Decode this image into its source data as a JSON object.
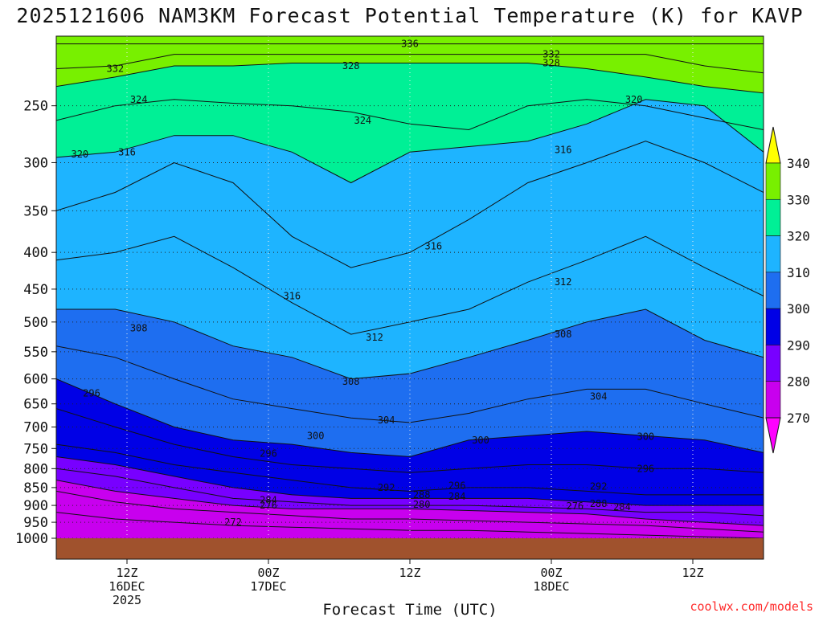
{
  "chart_data": {
    "type": "contour",
    "title": "2025121606 NAM3KM Forecast Potential Temperature (K) for KAVP",
    "xlabel": "Forecast Time (UTC)",
    "ylabel": "",
    "credit": "coolwx.com/models",
    "y_axis": {
      "scale": "pressure (log)",
      "ylim": [
        1000,
        200
      ],
      "ticks": [
        "250",
        "300",
        "350",
        "400",
        "450",
        "500",
        "550",
        "600",
        "650",
        "700",
        "750",
        "800",
        "850",
        "900",
        "950",
        "1000"
      ]
    },
    "x_axis": {
      "xlim_hours": [
        0,
        60
      ],
      "ticks": [
        {
          "hour": 6,
          "line1": "12Z",
          "line2": "16DEC",
          "line3": "2025"
        },
        {
          "hour": 18,
          "line1": "00Z",
          "line2": "17DEC",
          "line3": ""
        },
        {
          "hour": 30,
          "line1": "12Z",
          "line2": "",
          "line3": ""
        },
        {
          "hour": 42,
          "line1": "00Z",
          "line2": "18DEC",
          "line3": ""
        },
        {
          "hour": 54,
          "line1": "12Z",
          "line2": "",
          "line3": ""
        }
      ]
    },
    "grid": true,
    "colorbar": {
      "levels": [
        270,
        280,
        290,
        300,
        310,
        320,
        330,
        340
      ],
      "colors": [
        "#ff00ff",
        "#c800ee",
        "#7800ff",
        "#0000e6",
        "#1e6ef0",
        "#1eb4ff",
        "#00f096",
        "#78f000",
        "#ffff00"
      ],
      "labels": [
        "270",
        "280",
        "290",
        "300",
        "310",
        "320",
        "330",
        "340"
      ]
    },
    "isentropes": [
      {
        "theta": 336,
        "pressure": [
          205,
          205,
          205,
          205,
          205,
          205,
          205,
          205,
          205,
          205,
          205,
          205,
          205
        ]
      },
      {
        "theta": 332,
        "pressure": [
          222,
          220,
          212,
          212,
          212,
          212,
          212,
          212,
          212,
          212,
          212,
          220,
          225
        ]
      },
      {
        "theta": 328,
        "pressure": [
          235,
          228,
          220,
          220,
          218,
          218,
          218,
          218,
          218,
          222,
          228,
          235,
          240
        ]
      },
      {
        "theta": 324,
        "pressure": [
          262,
          250,
          245,
          248,
          250,
          255,
          265,
          270,
          250,
          245,
          250,
          260,
          270
        ]
      },
      {
        "theta": 320,
        "pressure": [
          295,
          290,
          275,
          275,
          290,
          320,
          290,
          285,
          280,
          265,
          245,
          250,
          290
        ]
      },
      {
        "theta": 316,
        "pressure": [
          350,
          330,
          300,
          320,
          380,
          420,
          400,
          360,
          320,
          300,
          280,
          300,
          330
        ]
      },
      {
        "theta": 312,
        "pressure": [
          410,
          400,
          380,
          420,
          470,
          520,
          500,
          480,
          440,
          410,
          380,
          420,
          460
        ]
      },
      {
        "theta": 308,
        "pressure": [
          480,
          480,
          500,
          540,
          560,
          600,
          590,
          560,
          530,
          500,
          480,
          530,
          560
        ]
      },
      {
        "theta": 304,
        "pressure": [
          540,
          560,
          600,
          640,
          660,
          680,
          690,
          670,
          640,
          620,
          620,
          650,
          680
        ]
      },
      {
        "theta": 300,
        "pressure": [
          600,
          650,
          700,
          730,
          740,
          760,
          770,
          730,
          720,
          710,
          720,
          730,
          760
        ]
      },
      {
        "theta": 296,
        "pressure": [
          660,
          700,
          740,
          770,
          790,
          800,
          810,
          800,
          790,
          790,
          800,
          800,
          810
        ]
      },
      {
        "theta": 292,
        "pressure": [
          740,
          760,
          790,
          810,
          830,
          850,
          860,
          850,
          850,
          860,
          870,
          870,
          870
        ]
      },
      {
        "theta": 288,
        "pressure": [
          770,
          790,
          820,
          850,
          870,
          880,
          880,
          880,
          880,
          890,
          900,
          900,
          900
        ]
      },
      {
        "theta": 284,
        "pressure": [
          800,
          820,
          850,
          880,
          890,
          900,
          900,
          900,
          905,
          910,
          920,
          920,
          930
        ]
      },
      {
        "theta": 280,
        "pressure": [
          830,
          860,
          880,
          900,
          910,
          910,
          910,
          915,
          920,
          925,
          940,
          950,
          960
        ]
      },
      {
        "theta": 276,
        "pressure": [
          860,
          890,
          910,
          920,
          930,
          940,
          940,
          945,
          950,
          955,
          960,
          970,
          980
        ]
      },
      {
        "theta": 272,
        "pressure": [
          920,
          940,
          950,
          960,
          965,
          970,
          975,
          975,
          980,
          985,
          990,
          995,
          1000
        ]
      }
    ],
    "isentrope_hours": [
      0,
      5,
      10,
      15,
      20,
      25,
      30,
      35,
      40,
      45,
      50,
      55,
      60
    ],
    "contour_labels": [
      {
        "text": "336",
        "hour": 30,
        "pressure": 205
      },
      {
        "text": "332",
        "hour": 5,
        "pressure": 222
      },
      {
        "text": "332",
        "hour": 42,
        "pressure": 212
      },
      {
        "text": "328",
        "hour": 25,
        "pressure": 220
      },
      {
        "text": "328",
        "hour": 42,
        "pressure": 218
      },
      {
        "text": "324",
        "hour": 7,
        "pressure": 245
      },
      {
        "text": "324",
        "hour": 26,
        "pressure": 262
      },
      {
        "text": "320",
        "hour": 2,
        "pressure": 292
      },
      {
        "text": "320",
        "hour": 49,
        "pressure": 245
      },
      {
        "text": "316",
        "hour": 6,
        "pressure": 290
      },
      {
        "text": "316",
        "hour": 43,
        "pressure": 288
      },
      {
        "text": "316",
        "hour": 32,
        "pressure": 392
      },
      {
        "text": "316",
        "hour": 20,
        "pressure": 460
      },
      {
        "text": "312",
        "hour": 43,
        "pressure": 440
      },
      {
        "text": "312",
        "hour": 27,
        "pressure": 525
      },
      {
        "text": "308",
        "hour": 7,
        "pressure": 510
      },
      {
        "text": "308",
        "hour": 43,
        "pressure": 520
      },
      {
        "text": "308",
        "hour": 25,
        "pressure": 605
      },
      {
        "text": "304",
        "hour": 46,
        "pressure": 635
      },
      {
        "text": "304",
        "hour": 28,
        "pressure": 685
      },
      {
        "text": "300",
        "hour": 22,
        "pressure": 720
      },
      {
        "text": "300",
        "hour": 36,
        "pressure": 730
      },
      {
        "text": "300",
        "hour": 50,
        "pressure": 722
      },
      {
        "text": "296",
        "hour": 3,
        "pressure": 628
      },
      {
        "text": "296",
        "hour": 18,
        "pressure": 762
      },
      {
        "text": "296",
        "hour": 50,
        "pressure": 800
      },
      {
        "text": "296",
        "hour": 34,
        "pressure": 845
      },
      {
        "text": "292",
        "hour": 28,
        "pressure": 850
      },
      {
        "text": "292",
        "hour": 46,
        "pressure": 847
      },
      {
        "text": "288",
        "hour": 31,
        "pressure": 870
      },
      {
        "text": "288",
        "hour": 46,
        "pressure": 895
      },
      {
        "text": "284",
        "hour": 18,
        "pressure": 885
      },
      {
        "text": "284",
        "hour": 34,
        "pressure": 875
      },
      {
        "text": "284",
        "hour": 48,
        "pressure": 905
      },
      {
        "text": "280",
        "hour": 31,
        "pressure": 897
      },
      {
        "text": "276",
        "hour": 18,
        "pressure": 900
      },
      {
        "text": "276",
        "hour": 44,
        "pressure": 902
      },
      {
        "text": "272",
        "hour": 15,
        "pressure": 950
      }
    ]
  }
}
